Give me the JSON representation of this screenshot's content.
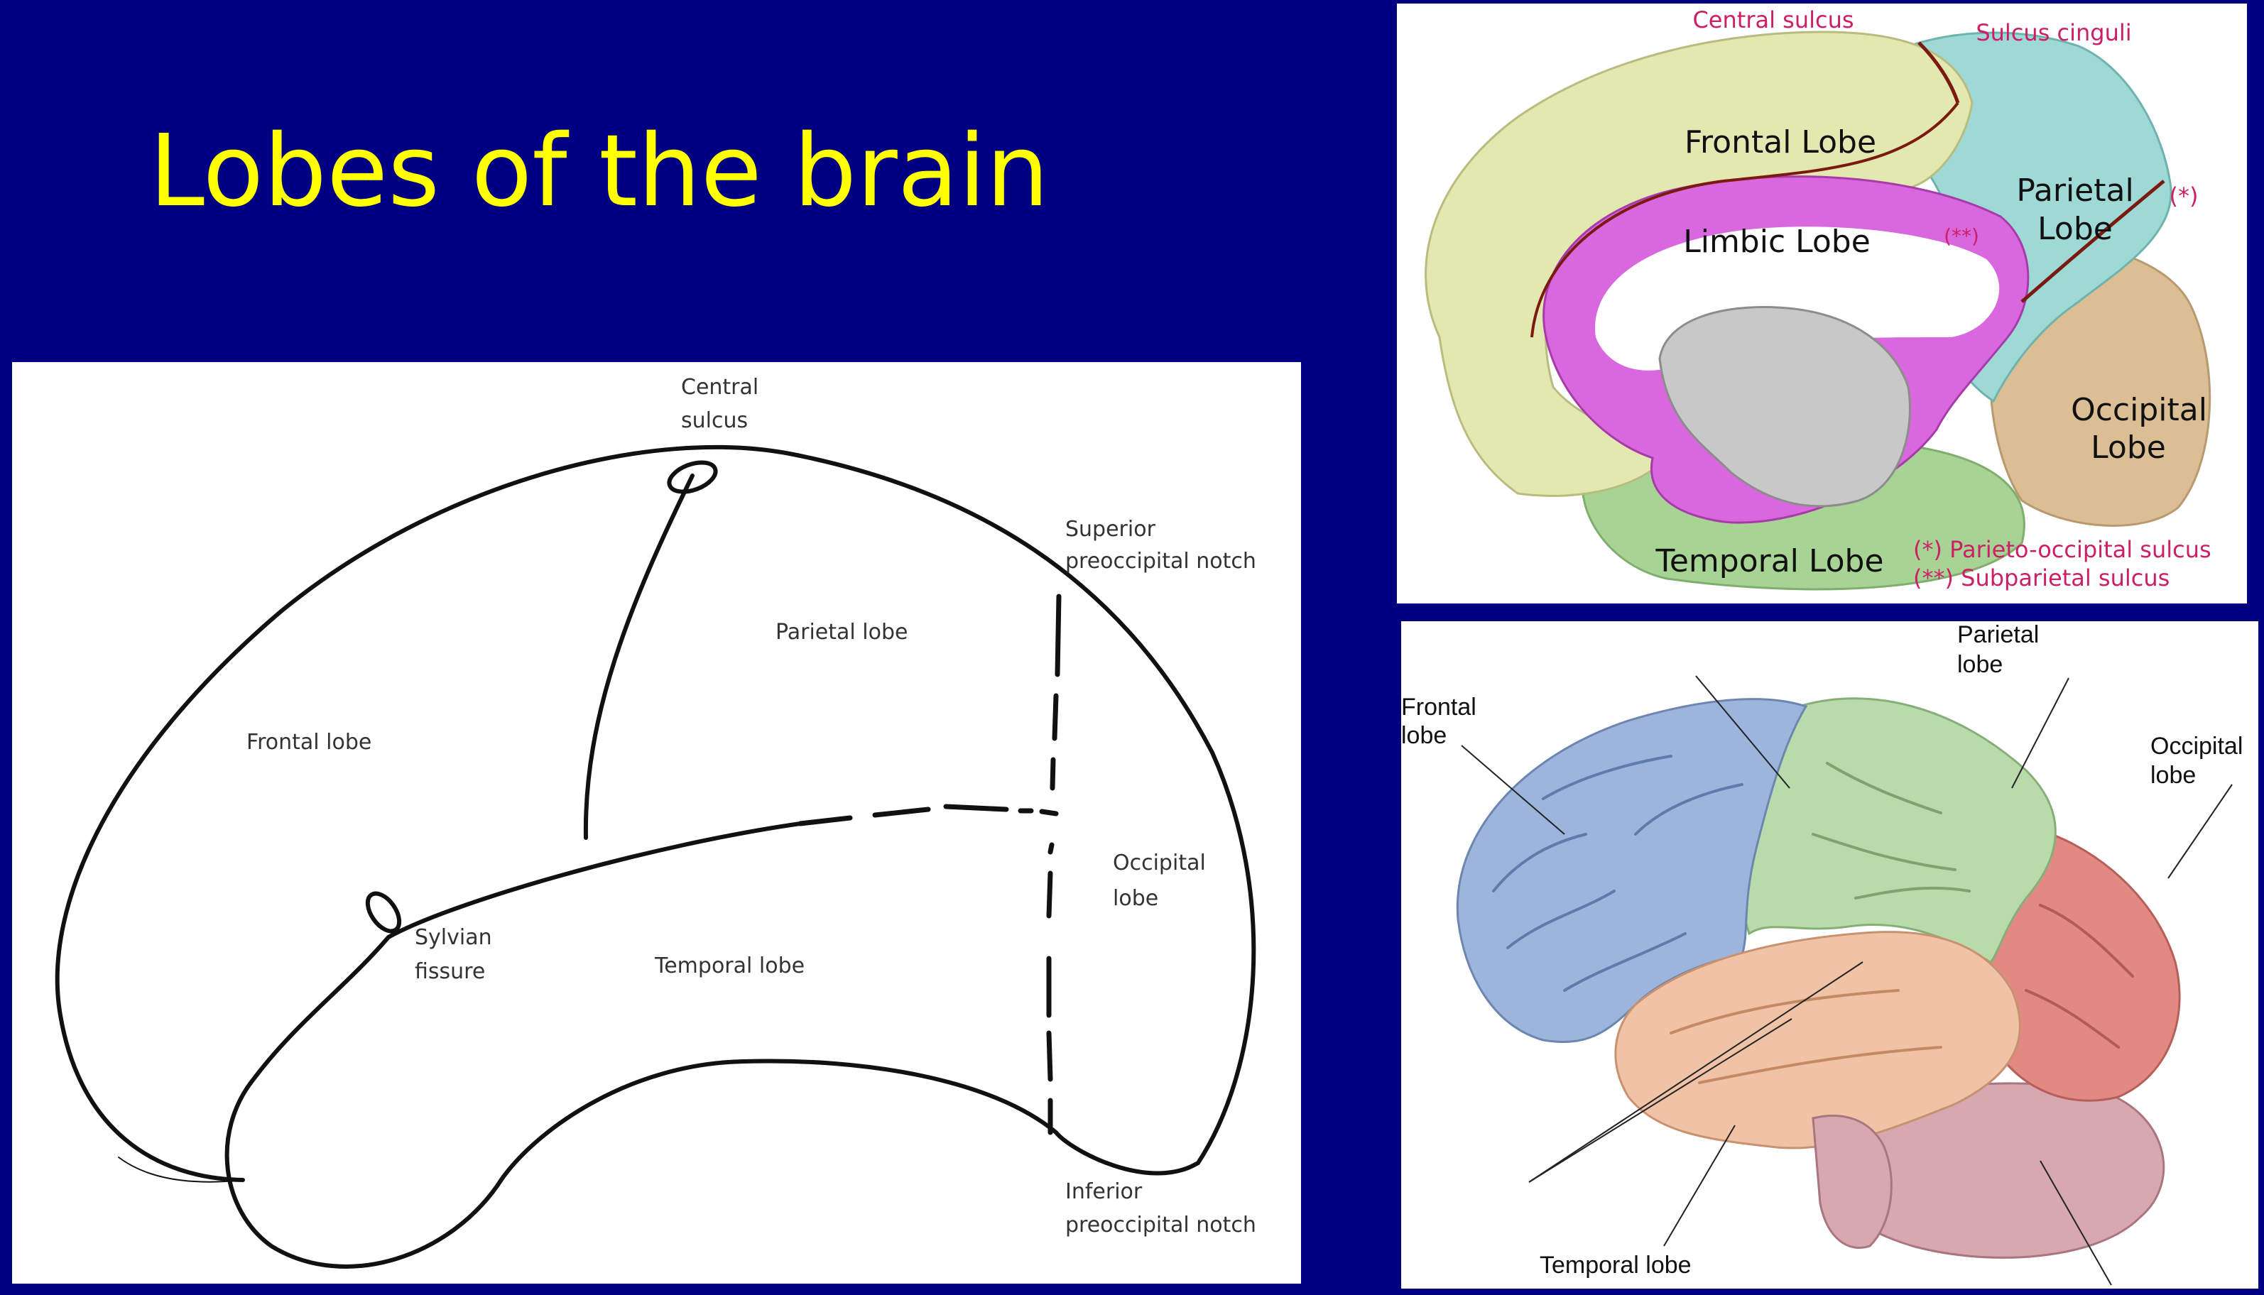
{
  "slide": {
    "title": "Lobes of the brain"
  },
  "schematic": {
    "central_sulcus": [
      "Central",
      "sulcus"
    ],
    "superior_notch": [
      "Superior",
      "preoccipital notch"
    ],
    "parietal": "Parietal lobe",
    "frontal": "Frontal lobe",
    "occipital": [
      "Occipital",
      "lobe"
    ],
    "sylvian": [
      "Sylvian",
      "fissure"
    ],
    "temporal": "Temporal lobe",
    "inferior_notch": [
      "Inferior",
      "preoccipital notch"
    ]
  },
  "medial": {
    "central_sulcus": "Central sulcus",
    "sulcus_cinguli": "Sulcus cinguli",
    "frontal": "Frontal Lobe",
    "parietal": [
      "Parietal",
      "Lobe"
    ],
    "star": "(*)",
    "limbic": "Limbic Lobe",
    "double_star": "(**)",
    "occipital": [
      "Occipital",
      "Lobe"
    ],
    "temporal": "Temporal Lobe",
    "legend_1": "(*) Parieto-occipital sulcus",
    "legend_2": "(**) Subparietal sulcus",
    "colors": {
      "frontal": "#e3e7b0",
      "parietal": "#9ed9d6",
      "limbic": "#d967de",
      "occipital": "#dcbe94",
      "temporal": "#a7d494",
      "brainstem": "#c8c8c8",
      "annotation": "#cc1f66"
    }
  },
  "lateral": {
    "frontal": [
      "Frontal",
      "lobe"
    ],
    "parietal": [
      "Parietal",
      "lobe"
    ],
    "occipital": [
      "Occipital",
      "lobe"
    ],
    "temporal": "Temporal lobe",
    "colors": {
      "frontal": "#9db5dc",
      "parietal": "#b9dbab",
      "occipital": "#e18982",
      "temporal": "#f1c3a6",
      "cerebellum": "#d7a8b0"
    }
  }
}
